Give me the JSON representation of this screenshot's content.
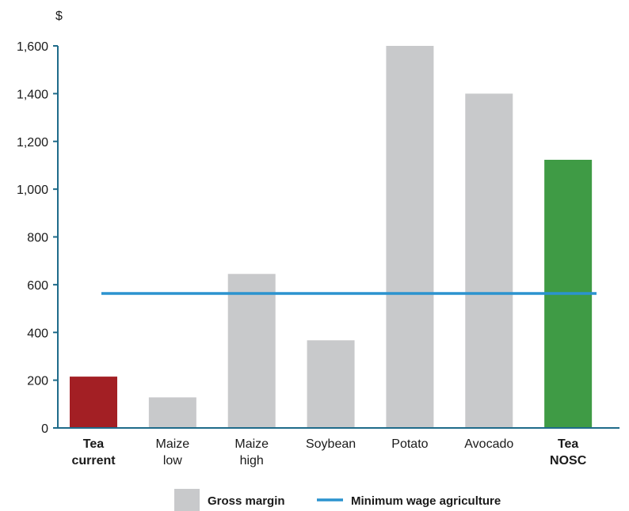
{
  "chart_data": {
    "type": "bar",
    "y_unit": "$",
    "categories": [
      [
        "Tea",
        "current"
      ],
      [
        "Maize",
        "low"
      ],
      [
        "Maize",
        "high"
      ],
      [
        "Soybean"
      ],
      [
        "Potato"
      ],
      [
        "Avocado"
      ],
      [
        "Tea",
        "NOSC"
      ]
    ],
    "values": [
      215,
      128,
      645,
      367,
      1600,
      1400,
      1123
    ],
    "bar_colors": [
      "#a31f24",
      "#c8c9cb",
      "#c8c9cb",
      "#c8c9cb",
      "#c8c9cb",
      "#c8c9cb",
      "#3f9b45"
    ],
    "label_colors": [
      "#a31f24",
      "#1a1a1a",
      "#1a1a1a",
      "#1a1a1a",
      "#1a1a1a",
      "#1a1a1a",
      "#3f9b45"
    ],
    "highlight_labels": [
      true,
      false,
      false,
      false,
      false,
      false,
      true
    ],
    "reference_line": {
      "name": "Minimum wage agriculture",
      "value": 563,
      "color": "#2b93cf"
    },
    "ylim": [
      0,
      1600
    ],
    "yticks": [
      0,
      200,
      400,
      600,
      800,
      1000,
      1200,
      1400,
      1600
    ],
    "ytick_labels": [
      "0",
      "200",
      "400",
      "600",
      "800",
      "1,000",
      "1,200",
      "1,400",
      "1,600"
    ],
    "axis_color": "#1f6b8a",
    "grid": false,
    "legend_position": "bottom",
    "legend": [
      {
        "label": "Gross margin",
        "kind": "box",
        "color": "#c8c9cb"
      },
      {
        "label": "Minimum wage agriculture",
        "kind": "line",
        "color": "#2b93cf"
      }
    ]
  }
}
